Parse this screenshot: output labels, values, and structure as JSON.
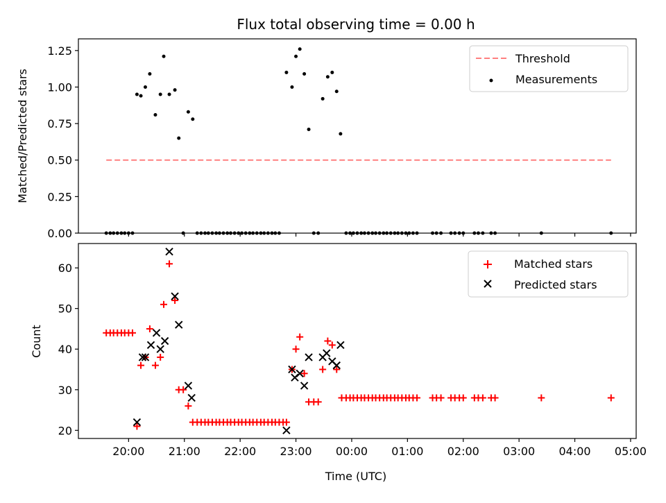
{
  "chart_data": [
    {
      "type": "scatter",
      "title": "Flux total observing time = 0.00 h",
      "xlabel": "",
      "ylabel": "Matched/Predicted stars",
      "ylim": [
        0,
        1.33
      ],
      "xlim": [
        19.1,
        29.1
      ],
      "yticks": [
        0.0,
        0.25,
        0.5,
        0.75,
        1.0,
        1.25
      ],
      "ytick_labels": [
        "0.00",
        "0.25",
        "0.50",
        "0.75",
        "1.00",
        "1.25"
      ],
      "legend_position": "top-right",
      "grid": false,
      "threshold": {
        "name": "Threshold",
        "y": 0.5,
        "x_range": [
          19.6,
          28.65
        ],
        "color": "#ff7f7f",
        "style": "dashed"
      },
      "series": [
        {
          "name": "Measurements",
          "color": "#000000",
          "marker": "dot",
          "points": [
            [
              19.6,
              0
            ],
            [
              19.67,
              0
            ],
            [
              19.73,
              0
            ],
            [
              19.8,
              0
            ],
            [
              19.87,
              0
            ],
            [
              19.93,
              0
            ],
            [
              20.0,
              0
            ],
            [
              20.07,
              0
            ],
            [
              20.15,
              0.95
            ],
            [
              20.22,
              0.94
            ],
            [
              20.3,
              1.0
            ],
            [
              20.38,
              1.09
            ],
            [
              20.48,
              0.81
            ],
            [
              20.57,
              0.95
            ],
            [
              20.63,
              1.21
            ],
            [
              20.73,
              0.95
            ],
            [
              20.83,
              0.98
            ],
            [
              20.9,
              0.65
            ],
            [
              20.98,
              0
            ],
            [
              21.07,
              0.83
            ],
            [
              21.15,
              0.78
            ],
            [
              21.23,
              0
            ],
            [
              21.3,
              0
            ],
            [
              21.37,
              0
            ],
            [
              21.43,
              0
            ],
            [
              21.5,
              0
            ],
            [
              21.57,
              0
            ],
            [
              21.63,
              0
            ],
            [
              21.7,
              0
            ],
            [
              21.77,
              0
            ],
            [
              21.83,
              0
            ],
            [
              21.9,
              0
            ],
            [
              21.97,
              0
            ],
            [
              22.03,
              0
            ],
            [
              22.1,
              0
            ],
            [
              22.17,
              0
            ],
            [
              22.23,
              0
            ],
            [
              22.3,
              0
            ],
            [
              22.37,
              0
            ],
            [
              22.43,
              0
            ],
            [
              22.5,
              0
            ],
            [
              22.57,
              0
            ],
            [
              22.63,
              0
            ],
            [
              22.7,
              0
            ],
            [
              22.83,
              1.1
            ],
            [
              22.93,
              1.0
            ],
            [
              23.0,
              1.21
            ],
            [
              23.07,
              1.26
            ],
            [
              23.15,
              1.09
            ],
            [
              23.23,
              0.71
            ],
            [
              23.32,
              0
            ],
            [
              23.4,
              0
            ],
            [
              23.48,
              0.92
            ],
            [
              23.57,
              1.07
            ],
            [
              23.65,
              1.1
            ],
            [
              23.73,
              0.97
            ],
            [
              23.8,
              0.68
            ],
            [
              23.9,
              0
            ],
            [
              23.97,
              0
            ],
            [
              24.03,
              0
            ],
            [
              24.1,
              0
            ],
            [
              24.17,
              0
            ],
            [
              24.23,
              0
            ],
            [
              24.3,
              0
            ],
            [
              24.37,
              0
            ],
            [
              24.43,
              0
            ],
            [
              24.5,
              0
            ],
            [
              24.57,
              0
            ],
            [
              24.63,
              0
            ],
            [
              24.7,
              0
            ],
            [
              24.77,
              0
            ],
            [
              24.83,
              0
            ],
            [
              24.9,
              0
            ],
            [
              24.97,
              0
            ],
            [
              25.03,
              0
            ],
            [
              25.1,
              0
            ],
            [
              25.17,
              0
            ],
            [
              25.45,
              0
            ],
            [
              25.52,
              0
            ],
            [
              25.6,
              0
            ],
            [
              25.78,
              0
            ],
            [
              25.85,
              0
            ],
            [
              25.93,
              0
            ],
            [
              26.0,
              0
            ],
            [
              26.2,
              0
            ],
            [
              26.27,
              0
            ],
            [
              26.35,
              0
            ],
            [
              26.5,
              0
            ],
            [
              26.57,
              0
            ],
            [
              27.4,
              0
            ],
            [
              28.65,
              0
            ]
          ]
        }
      ]
    },
    {
      "type": "scatter",
      "title": "",
      "xlabel": "Time (UTC)",
      "ylabel": "Count",
      "ylim": [
        18,
        66
      ],
      "xlim": [
        19.1,
        29.1
      ],
      "yticks": [
        20,
        30,
        40,
        50,
        60
      ],
      "ytick_labels": [
        "20",
        "30",
        "40",
        "50",
        "60"
      ],
      "xticks": [
        20,
        21,
        22,
        23,
        24,
        25,
        26,
        27,
        28,
        29
      ],
      "xtick_labels": [
        "20:00",
        "21:00",
        "22:00",
        "23:00",
        "00:00",
        "01:00",
        "02:00",
        "03:00",
        "04:00",
        "05:00"
      ],
      "legend_position": "top-right",
      "grid": false,
      "series": [
        {
          "name": "Matched stars",
          "color": "#ff0000",
          "marker": "plus",
          "points": [
            [
              19.6,
              44
            ],
            [
              19.67,
              44
            ],
            [
              19.73,
              44
            ],
            [
              19.8,
              44
            ],
            [
              19.87,
              44
            ],
            [
              19.93,
              44
            ],
            [
              20.0,
              44
            ],
            [
              20.07,
              44
            ],
            [
              20.15,
              21
            ],
            [
              20.22,
              36
            ],
            [
              20.3,
              38
            ],
            [
              20.38,
              45
            ],
            [
              20.48,
              36
            ],
            [
              20.57,
              38
            ],
            [
              20.63,
              51
            ],
            [
              20.73,
              61
            ],
            [
              20.83,
              52
            ],
            [
              20.9,
              30
            ],
            [
              20.98,
              30
            ],
            [
              21.07,
              26
            ],
            [
              21.15,
              22
            ],
            [
              21.23,
              22
            ],
            [
              21.3,
              22
            ],
            [
              21.37,
              22
            ],
            [
              21.43,
              22
            ],
            [
              21.5,
              22
            ],
            [
              21.57,
              22
            ],
            [
              21.63,
              22
            ],
            [
              21.7,
              22
            ],
            [
              21.77,
              22
            ],
            [
              21.83,
              22
            ],
            [
              21.9,
              22
            ],
            [
              21.97,
              22
            ],
            [
              22.03,
              22
            ],
            [
              22.1,
              22
            ],
            [
              22.17,
              22
            ],
            [
              22.23,
              22
            ],
            [
              22.3,
              22
            ],
            [
              22.37,
              22
            ],
            [
              22.43,
              22
            ],
            [
              22.5,
              22
            ],
            [
              22.57,
              22
            ],
            [
              22.63,
              22
            ],
            [
              22.7,
              22
            ],
            [
              22.77,
              22
            ],
            [
              22.83,
              22
            ],
            [
              22.93,
              35
            ],
            [
              23.0,
              40
            ],
            [
              23.07,
              43
            ],
            [
              23.15,
              34
            ],
            [
              23.23,
              27
            ],
            [
              23.32,
              27
            ],
            [
              23.4,
              27
            ],
            [
              23.48,
              35
            ],
            [
              23.57,
              42
            ],
            [
              23.65,
              41
            ],
            [
              23.73,
              35
            ],
            [
              23.82,
              28
            ],
            [
              23.9,
              28
            ],
            [
              23.97,
              28
            ],
            [
              24.03,
              28
            ],
            [
              24.1,
              28
            ],
            [
              24.17,
              28
            ],
            [
              24.23,
              28
            ],
            [
              24.3,
              28
            ],
            [
              24.37,
              28
            ],
            [
              24.43,
              28
            ],
            [
              24.5,
              28
            ],
            [
              24.57,
              28
            ],
            [
              24.63,
              28
            ],
            [
              24.7,
              28
            ],
            [
              24.77,
              28
            ],
            [
              24.83,
              28
            ],
            [
              24.9,
              28
            ],
            [
              24.97,
              28
            ],
            [
              25.03,
              28
            ],
            [
              25.1,
              28
            ],
            [
              25.17,
              28
            ],
            [
              25.45,
              28
            ],
            [
              25.52,
              28
            ],
            [
              25.6,
              28
            ],
            [
              25.78,
              28
            ],
            [
              25.85,
              28
            ],
            [
              25.93,
              28
            ],
            [
              26.0,
              28
            ],
            [
              26.2,
              28
            ],
            [
              26.27,
              28
            ],
            [
              26.35,
              28
            ],
            [
              26.5,
              28
            ],
            [
              26.57,
              28
            ],
            [
              27.4,
              28
            ],
            [
              28.65,
              28
            ]
          ]
        },
        {
          "name": "Predicted stars",
          "color": "#000000",
          "marker": "x",
          "points": [
            [
              20.15,
              22
            ],
            [
              20.25,
              38
            ],
            [
              20.3,
              38
            ],
            [
              20.4,
              41
            ],
            [
              20.5,
              44
            ],
            [
              20.57,
              40
            ],
            [
              20.65,
              42
            ],
            [
              20.73,
              64
            ],
            [
              20.83,
              53
            ],
            [
              20.9,
              46
            ],
            [
              21.07,
              31
            ],
            [
              21.13,
              28
            ],
            [
              22.83,
              20
            ],
            [
              22.93,
              35
            ],
            [
              22.98,
              33
            ],
            [
              23.07,
              34
            ],
            [
              23.15,
              31
            ],
            [
              23.23,
              38
            ],
            [
              23.48,
              38
            ],
            [
              23.55,
              39
            ],
            [
              23.65,
              37
            ],
            [
              23.73,
              36
            ],
            [
              23.8,
              41
            ]
          ]
        }
      ]
    }
  ]
}
